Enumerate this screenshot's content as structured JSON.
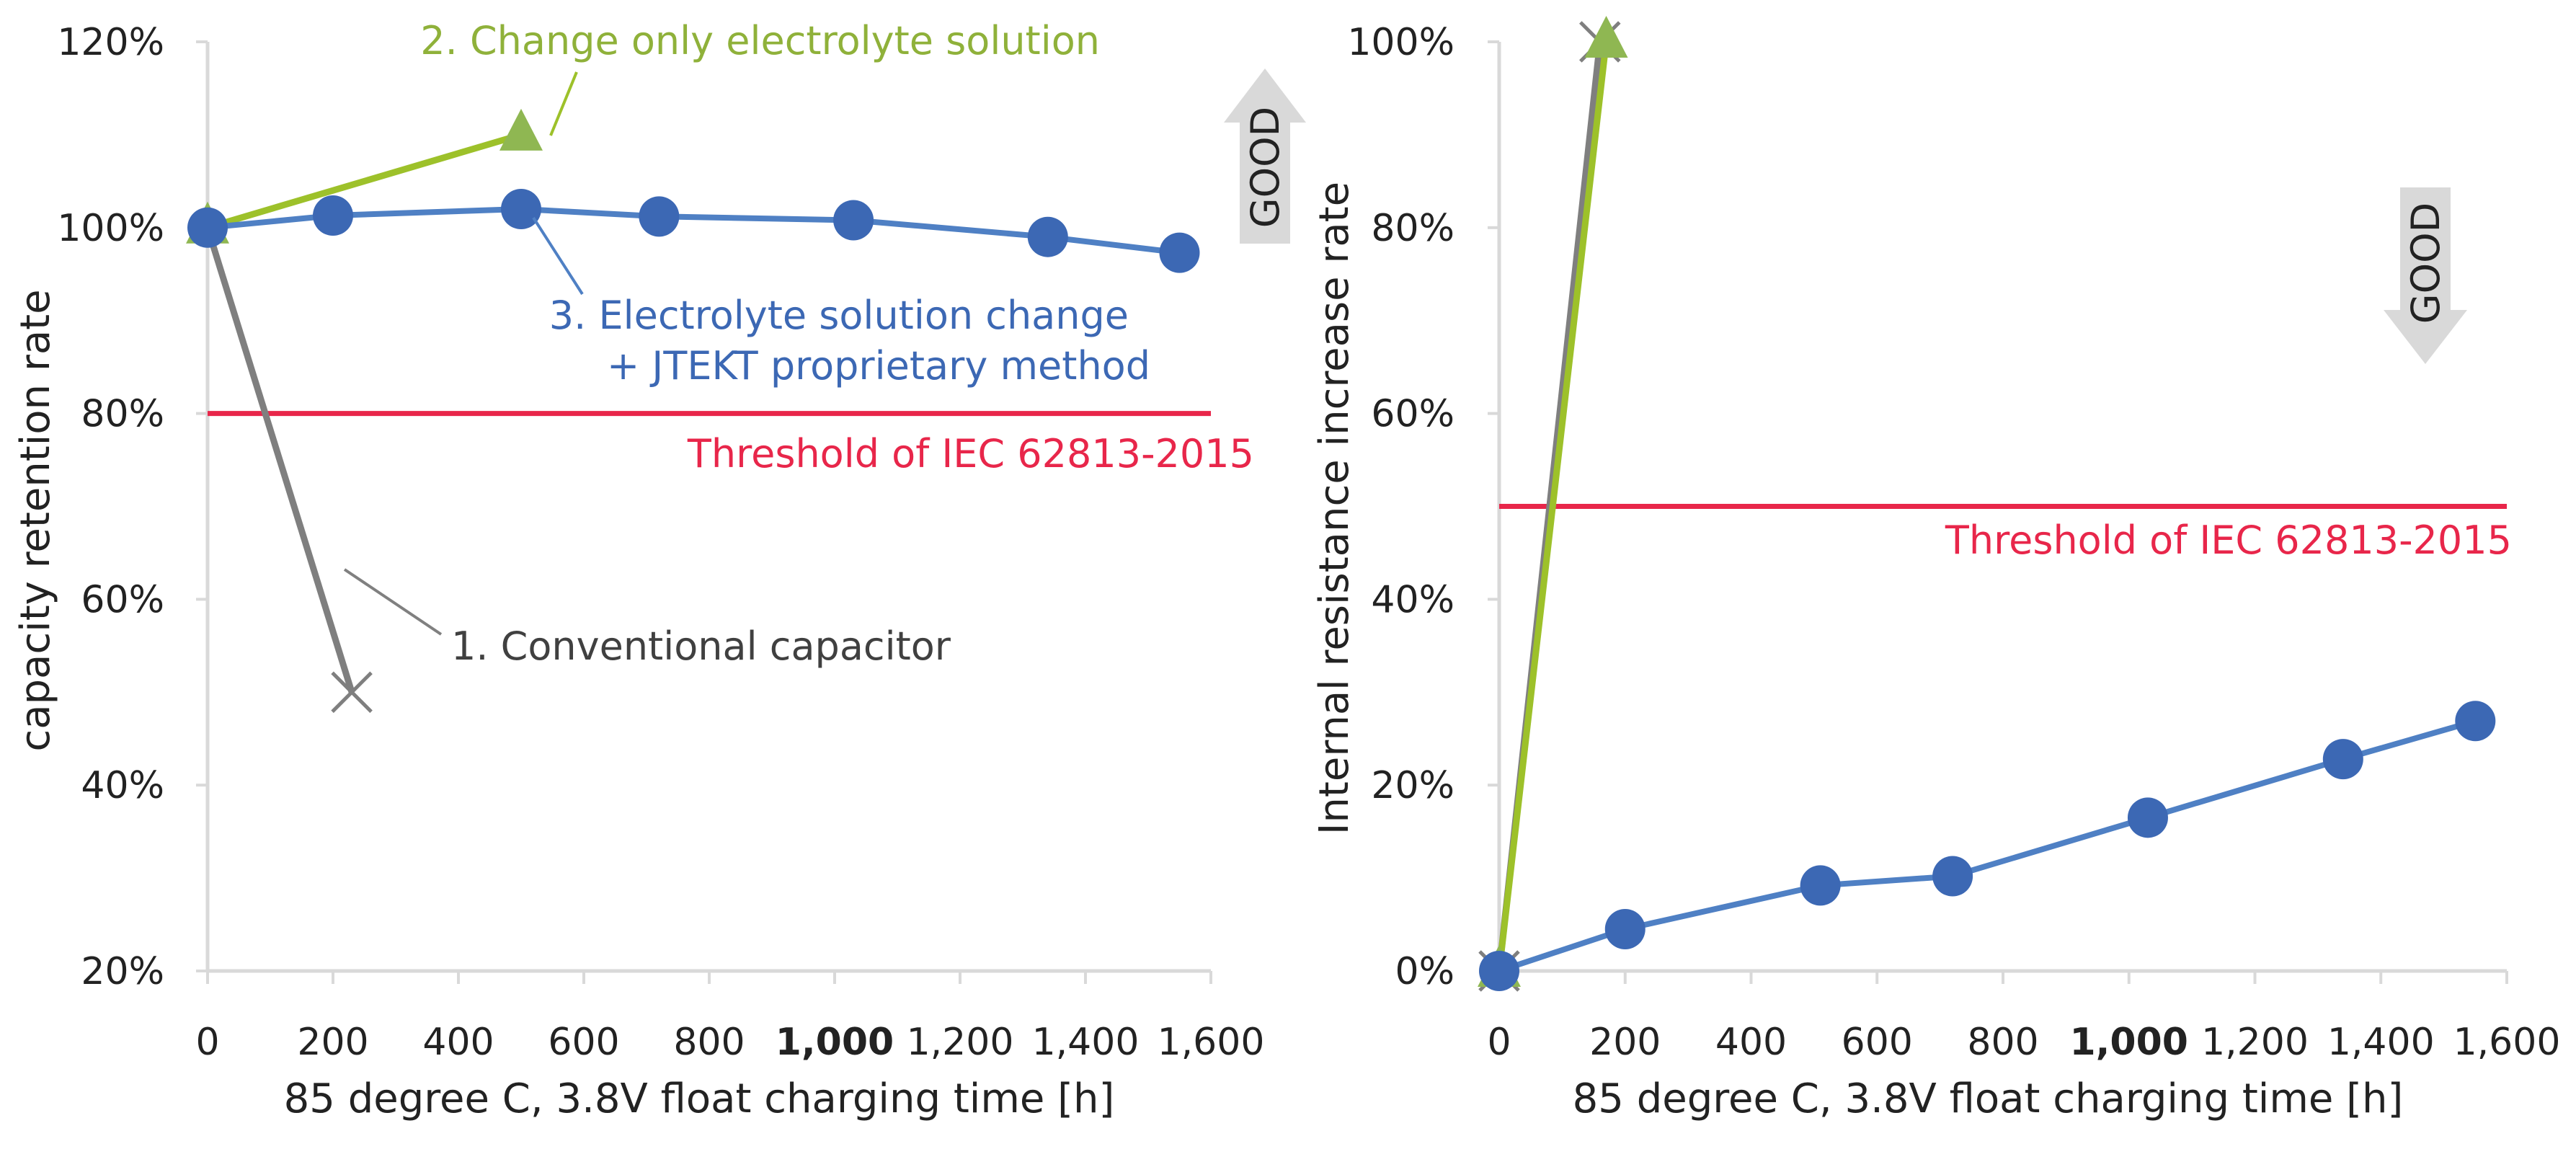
{
  "colors": {
    "conventional": "#7f7f7f",
    "electrolyte": "#9dc12a",
    "electrolyte_marker": "#8fb752",
    "jtekt_line": "#4f80c4",
    "jtekt_marker": "#3c68b4",
    "threshold": "#e8264a",
    "good_arrow": "#d9d9d9",
    "axis": "#d9d9d9",
    "highlight": "#e8264a"
  },
  "chart_data": [
    {
      "type": "line",
      "title": "",
      "xlabel": "85 degree C, 3.8V float charging time [h]",
      "ylabel": "capacity retention rate",
      "xlim": [
        0,
        1600
      ],
      "ylim": [
        0.2,
        1.2
      ],
      "x_ticks": [
        0,
        200,
        400,
        600,
        800,
        1000,
        1200,
        1400,
        1600
      ],
      "x_tick_labels": [
        "0",
        "200",
        "400",
        "600",
        "800",
        "1,000",
        "1,200",
        "1,400",
        "1,600"
      ],
      "highlight_tick": "1,000",
      "y_ticks": [
        0.2,
        0.4,
        0.6,
        0.8,
        1.0,
        1.2
      ],
      "y_tick_labels": [
        "20%",
        "40%",
        "60%",
        "80%",
        "100%",
        "120%"
      ],
      "series": [
        {
          "name": "1. Conventional capacitor",
          "marker": "x",
          "x": [
            0,
            230
          ],
          "y": [
            1.0,
            0.5
          ]
        },
        {
          "name": "2. Change only electrolyte solution",
          "marker": "triangle",
          "x": [
            0,
            500
          ],
          "y": [
            1.0,
            1.1
          ]
        },
        {
          "name": "3. Electrolyte solution change + JTEKT proprietary method",
          "marker": "circle",
          "x": [
            0,
            200,
            500,
            720,
            1030,
            1340,
            1550
          ],
          "y": [
            1.0,
            1.013,
            1.02,
            1.012,
            1.008,
            0.99,
            0.973
          ]
        }
      ],
      "threshold": {
        "value": 0.8,
        "label": "Threshold of IEC 62813-2015"
      },
      "annotations": {
        "conventional": "1. Conventional capacitor",
        "electrolyte": "2. Change only electrolyte solution",
        "jtekt_line1": "3. Electrolyte solution change",
        "jtekt_line2": "+ JTEKT proprietary method"
      },
      "good_label": "GOOD",
      "good_direction": "up"
    },
    {
      "type": "line",
      "title": "",
      "xlabel": "85 degree C, 3.8V float charging time [h]",
      "ylabel": "Internal resistance increase rate",
      "xlim": [
        0,
        1600
      ],
      "ylim": [
        0,
        1.0
      ],
      "x_ticks": [
        0,
        200,
        400,
        600,
        800,
        1000,
        1200,
        1400,
        1600
      ],
      "x_tick_labels": [
        "0",
        "200",
        "400",
        "600",
        "800",
        "1,000",
        "1,200",
        "1,400",
        "1,600"
      ],
      "highlight_tick": "1,000",
      "y_ticks": [
        0,
        0.2,
        0.4,
        0.6,
        0.8,
        1.0
      ],
      "y_tick_labels": [
        "0%",
        "20%",
        "40%",
        "60%",
        "80%",
        "100%"
      ],
      "series": [
        {
          "name": "1. Conventional capacitor",
          "marker": "x",
          "x": [
            0,
            160
          ],
          "y": [
            0,
            1.0
          ]
        },
        {
          "name": "2. Change only electrolyte solution",
          "marker": "triangle",
          "x": [
            0,
            170
          ],
          "y": [
            0,
            1.0
          ]
        },
        {
          "name": "3. Electrolyte solution change + JTEKT proprietary method",
          "marker": "circle",
          "x": [
            0,
            200,
            510,
            720,
            1030,
            1340,
            1550
          ],
          "y": [
            0,
            0.045,
            0.092,
            0.102,
            0.165,
            0.228,
            0.269
          ]
        }
      ],
      "threshold": {
        "value": 0.5,
        "label": "Threshold of IEC 62813-2015"
      },
      "good_label": "GOOD",
      "good_direction": "down"
    }
  ]
}
